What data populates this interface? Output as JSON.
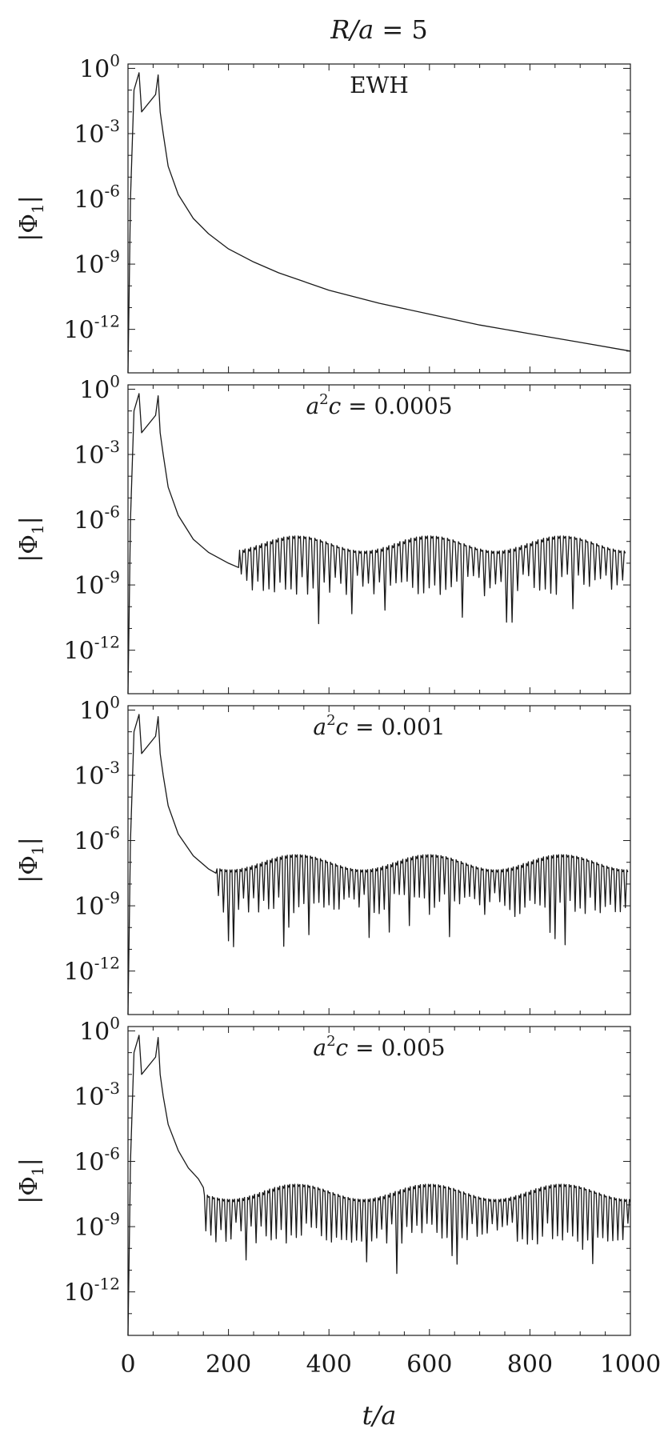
{
  "figure": {
    "title_lhs": "R/a",
    "title_eq": " = 5",
    "xlabel": "t/a",
    "ylabel_base": "Φ",
    "ylabel_sub": "1",
    "x_tick_labels": [
      "0",
      "200",
      "400",
      "600",
      "800",
      "1000"
    ],
    "y_tick_labels": [
      {
        "base": "10",
        "exp": "0"
      },
      {
        "base": "10",
        "exp": "-3"
      },
      {
        "base": "10",
        "exp": "-6"
      },
      {
        "base": "10",
        "exp": "-9"
      },
      {
        "base": "10",
        "exp": "-12"
      }
    ]
  },
  "chart_data": [
    {
      "type": "line",
      "annotation": "EWH",
      "xlim": [
        0,
        1000
      ],
      "ylim_log10": [
        -14,
        0.2
      ],
      "y_scale": "log",
      "series": [
        {
          "x": [
            0,
            5,
            12,
            22,
            27,
            55,
            60,
            64,
            70,
            80,
            100,
            130,
            160,
            200,
            250,
            300,
            400,
            500,
            600,
            700,
            800,
            900,
            1000
          ],
          "log10_y": [
            -14,
            -6,
            -1,
            -0.2,
            -2,
            -1.2,
            -0.3,
            -2,
            -3,
            -4.5,
            -5.8,
            -6.9,
            -7.6,
            -8.3,
            -8.9,
            -9.4,
            -10.2,
            -10.8,
            -11.3,
            -11.8,
            -12.2,
            -12.6,
            -13.0
          ]
        }
      ]
    },
    {
      "type": "line",
      "annotation_lhs": "a",
      "annotation_exp": "2",
      "annotation_rhs": "c = 0.0005",
      "xlim": [
        0,
        1000
      ],
      "ylim_log10": [
        -14,
        0.2
      ],
      "y_scale": "log",
      "plateau_start_x": 220,
      "plateau_log10_y": -7.3,
      "notch_spacing_x": 11,
      "series": [
        {
          "x": [
            0,
            5,
            12,
            22,
            27,
            55,
            60,
            64,
            70,
            80,
            100,
            130,
            160,
            200,
            220
          ],
          "log10_y": [
            -14,
            -6,
            -1,
            -0.2,
            -2,
            -1.2,
            -0.3,
            -2,
            -3,
            -4.5,
            -5.8,
            -6.9,
            -7.5,
            -8.0,
            -8.2
          ]
        }
      ]
    },
    {
      "type": "line",
      "annotation_lhs": "a",
      "annotation_exp": "2",
      "annotation_rhs": "c = 0.001",
      "xlim": [
        0,
        1000
      ],
      "ylim_log10": [
        -14,
        0.2
      ],
      "y_scale": "log",
      "plateau_start_x": 175,
      "plateau_log10_y": -7.2,
      "notch_spacing_x": 10,
      "series": [
        {
          "x": [
            0,
            5,
            12,
            22,
            27,
            55,
            60,
            64,
            70,
            80,
            100,
            130,
            160,
            175
          ],
          "log10_y": [
            -14,
            -6,
            -1,
            -0.2,
            -2,
            -1.2,
            -0.3,
            -2,
            -3,
            -4.4,
            -5.7,
            -6.7,
            -7.3,
            -7.5
          ]
        }
      ]
    },
    {
      "type": "line",
      "annotation_lhs": "a",
      "annotation_exp": "2",
      "annotation_rhs": "c = 0.005",
      "xlim": [
        0,
        1000
      ],
      "ylim_log10": [
        -14,
        0.2
      ],
      "y_scale": "log",
      "plateau_start_x": 150,
      "plateau_log10_y": -7.6,
      "notch_spacing_x": 10,
      "series": [
        {
          "x": [
            0,
            5,
            12,
            22,
            27,
            55,
            60,
            64,
            70,
            80,
            100,
            120,
            140,
            150
          ],
          "log10_y": [
            -14,
            -6,
            -1,
            -0.2,
            -2,
            -1.2,
            -0.3,
            -2,
            -3,
            -4.3,
            -5.5,
            -6.3,
            -6.8,
            -7.2
          ]
        }
      ]
    }
  ]
}
